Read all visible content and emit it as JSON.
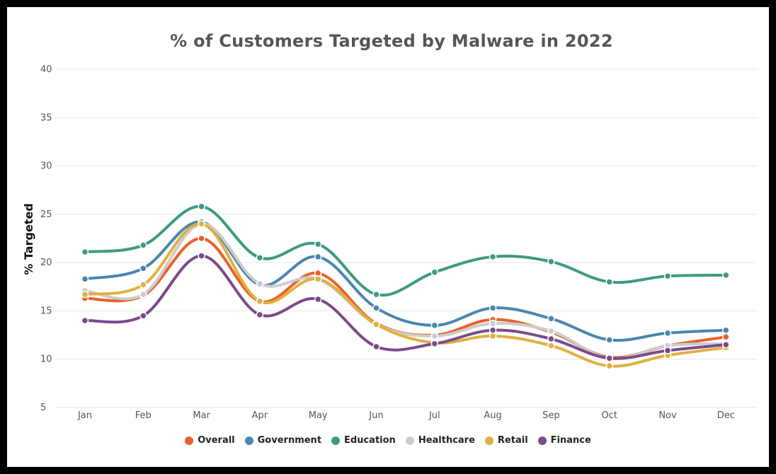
{
  "chart_data": {
    "type": "line",
    "title": "% of Customers Targeted by Malware in 2022",
    "xlabel": "",
    "ylabel": "% Targeted",
    "ylim": [
      5,
      40
    ],
    "yticks": [
      5,
      10,
      15,
      20,
      25,
      30,
      35,
      40
    ],
    "grid": true,
    "legend_position": "bottom",
    "categories": [
      "Jan",
      "Feb",
      "Mar",
      "Apr",
      "May",
      "Jun",
      "Jul",
      "Aug",
      "Sep",
      "Oct",
      "Nov",
      "Dec"
    ],
    "series": [
      {
        "name": "Overall",
        "color": "#e8612c",
        "values": [
          16.3,
          16.6,
          22.5,
          16.0,
          18.9,
          13.7,
          12.5,
          14.1,
          12.8,
          10.2,
          11.4,
          12.3
        ]
      },
      {
        "name": "Government",
        "color": "#4a86b0",
        "values": [
          18.3,
          19.4,
          24.2,
          17.7,
          20.6,
          15.3,
          13.5,
          15.3,
          14.2,
          12.0,
          12.7,
          13.0
        ]
      },
      {
        "name": "Education",
        "color": "#3d9a82",
        "values": [
          21.1,
          21.8,
          25.8,
          20.5,
          21.9,
          16.7,
          19.0,
          20.6,
          20.1,
          18.0,
          18.6,
          18.7
        ]
      },
      {
        "name": "Healthcare",
        "color": "#cccccc",
        "values": [
          17.1,
          16.7,
          24.0,
          17.8,
          18.3,
          13.6,
          12.4,
          13.7,
          12.9,
          10.1,
          11.4,
          11.6
        ]
      },
      {
        "name": "Retail",
        "color": "#e0b040",
        "values": [
          16.7,
          17.7,
          24.0,
          16.0,
          18.3,
          13.6,
          11.7,
          12.4,
          11.4,
          9.3,
          10.4,
          11.2
        ]
      },
      {
        "name": "Finance",
        "color": "#7a4a8a",
        "values": [
          14.0,
          14.5,
          20.7,
          14.6,
          16.2,
          11.3,
          11.6,
          13.0,
          12.1,
          10.1,
          10.9,
          11.5
        ]
      }
    ]
  }
}
